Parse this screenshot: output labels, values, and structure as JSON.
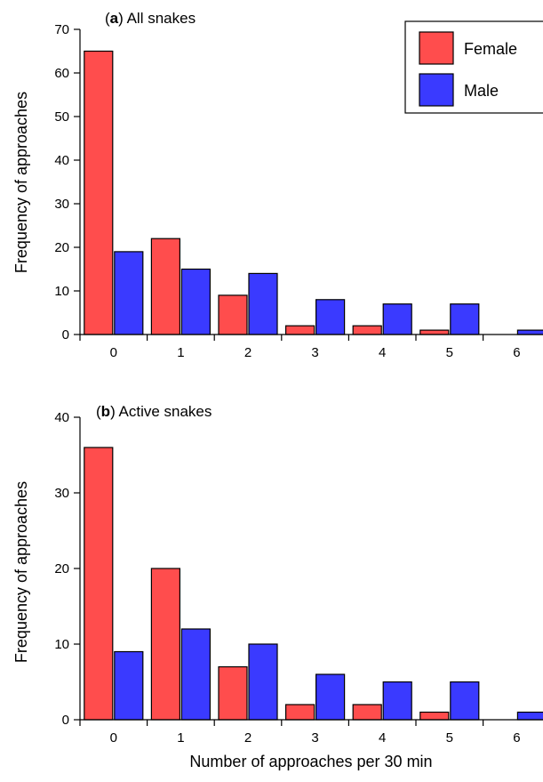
{
  "colors": {
    "female": "#ff4d4d",
    "male": "#3a3aff"
  },
  "legend": {
    "female": "Female",
    "male": "Male",
    "placement": "top-right"
  },
  "xlabel": "Number of approaches per 30 min",
  "chart_data": [
    {
      "type": "bar",
      "panel_letter": "a",
      "title_rest": ") All snakes",
      "title_open": "(",
      "ylabel": "Frequency of approaches",
      "categories": [
        "0",
        "1",
        "2",
        "3",
        "4",
        "5",
        "6"
      ],
      "ylim": [
        0,
        70
      ],
      "yticks": [
        0,
        10,
        20,
        30,
        40,
        50,
        60,
        70
      ],
      "series": [
        {
          "name": "Female",
          "values": [
            65,
            22,
            9,
            2,
            2,
            1,
            0
          ]
        },
        {
          "name": "Male",
          "values": [
            19,
            15,
            14,
            8,
            7,
            7,
            1
          ]
        }
      ]
    },
    {
      "type": "bar",
      "panel_letter": "b",
      "title_rest": ") Active snakes",
      "title_open": "(",
      "ylabel": "Frequency of approaches",
      "categories": [
        "0",
        "1",
        "2",
        "3",
        "4",
        "5",
        "6"
      ],
      "ylim": [
        0,
        40
      ],
      "yticks": [
        0,
        10,
        20,
        30,
        40
      ],
      "series": [
        {
          "name": "Female",
          "values": [
            36,
            20,
            7,
            2,
            2,
            1,
            0
          ]
        },
        {
          "name": "Male",
          "values": [
            9,
            12,
            10,
            6,
            5,
            5,
            1
          ]
        }
      ]
    }
  ]
}
